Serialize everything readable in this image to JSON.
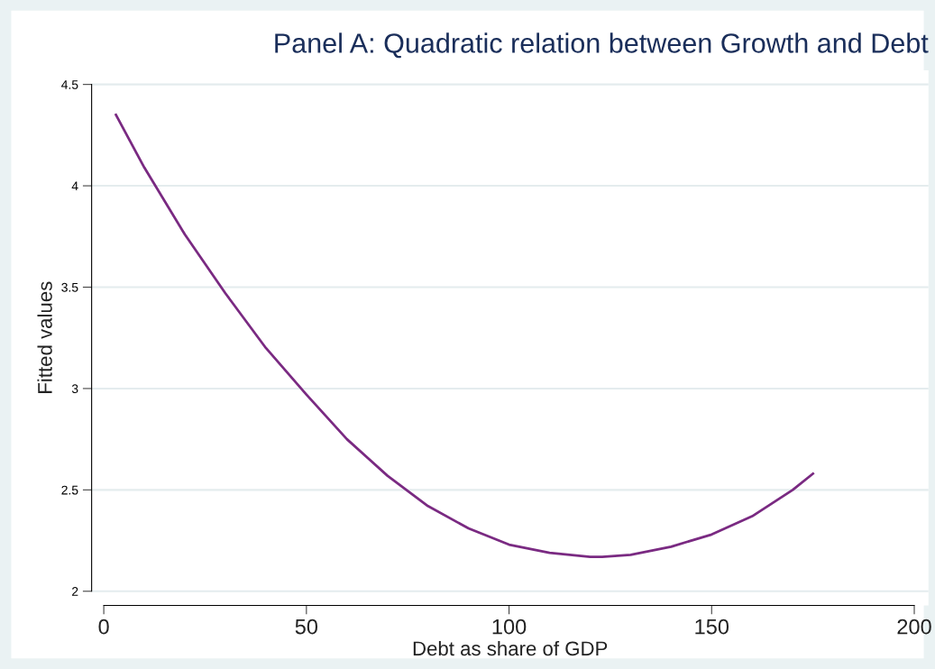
{
  "chart_data": {
    "type": "line",
    "title": "Panel A: Quadratic relation between Growth and Debt",
    "xlabel": "Debt as share of GDP",
    "ylabel": "Fitted values",
    "series": [
      {
        "color": "#7a2a82",
        "x": [
          3,
          10,
          20,
          30,
          40,
          50,
          60,
          70,
          80,
          90,
          100,
          110,
          120,
          123,
          130,
          140,
          150,
          160,
          170,
          175
        ],
        "values": [
          4.35,
          4.09,
          3.76,
          3.47,
          3.2,
          2.97,
          2.75,
          2.57,
          2.42,
          2.31,
          2.23,
          2.19,
          2.17,
          2.17,
          2.18,
          2.22,
          2.28,
          2.37,
          2.5,
          2.58
        ]
      }
    ],
    "xlim": [
      -3,
      203.5
    ],
    "ylim": [
      1.93,
      4.57
    ],
    "xticks": [
      0,
      50,
      100,
      150,
      200
    ],
    "yticks": [
      2,
      2.5,
      3,
      3.5,
      4,
      4.5
    ],
    "grid": "y",
    "marker": "none",
    "line_style": "solid",
    "legend": false
  }
}
